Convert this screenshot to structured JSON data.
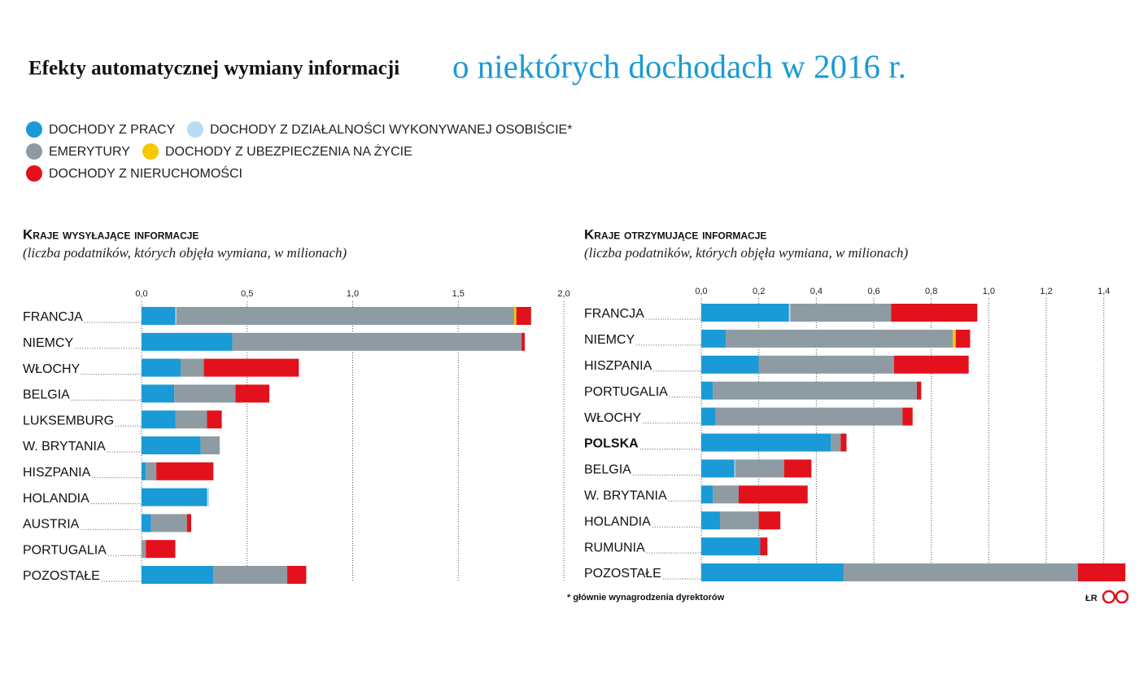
{
  "header": {
    "title": "Efekty automatycznej wymiany informacji",
    "title_highlight": "o niektórych dochodach w 2016 r."
  },
  "chart_data": [
    {
      "type": "bar",
      "orientation": "horizontal",
      "stacked": true,
      "grid": true,
      "title": "Kraje wysyłające informacje",
      "subtitle": "(liczba podatników, których objęła wymiana, w milionach)",
      "categories": [
        "FRANCJA",
        "NIEMCY",
        "WŁOCHY",
        "BELGIA",
        "LUKSEMBURG",
        "W. BRYTANIA",
        "HISZPANIA",
        "HOLANDIA",
        "AUSTRIA",
        "PORTUGALIA",
        "POZOSTAŁE"
      ],
      "series": [
        {
          "name": "DOCHODY Z PRACY",
          "color": "#1a9ad6",
          "values": [
            0.16,
            0.43,
            0.185,
            0.155,
            0.16,
            0.28,
            0.02,
            0.31,
            0.045,
            0,
            0.34
          ]
        },
        {
          "name": "DOCHODY Z DZIAŁALNOŚCI WYKONYWANEJ OSOBIŚCIE*",
          "color": "#b5dcf2",
          "values": [
            0.005,
            0,
            0,
            0,
            0,
            0,
            0,
            0.01,
            0,
            0,
            0
          ]
        },
        {
          "name": "EMERYTURY",
          "color": "#8e9ba3",
          "values": [
            1.6,
            1.37,
            0.11,
            0.29,
            0.15,
            0.09,
            0.05,
            0,
            0.17,
            0.02,
            0.35
          ]
        },
        {
          "name": "DOCHODY Z UBEZPIECZENIA NA ŻYCIE",
          "color": "#f5c800",
          "values": [
            0.01,
            0,
            0,
            0,
            0,
            0,
            0,
            0,
            0,
            0,
            0
          ]
        },
        {
          "name": "DOCHODY Z NIERUCHOMOŚCI",
          "color": "#e3111b",
          "values": [
            0.07,
            0.015,
            0.45,
            0.16,
            0.07,
            0,
            0.27,
            0,
            0.02,
            0.14,
            0.09
          ]
        }
      ],
      "xlim": [
        0,
        2
      ],
      "xticks": [
        {
          "value": 0,
          "label": "0,0"
        },
        {
          "value": 0.5,
          "label": "0,5"
        },
        {
          "value": 1,
          "label": "1,0"
        },
        {
          "value": 1.5,
          "label": "1,5"
        },
        {
          "value": 2,
          "label": "2,0"
        }
      ]
    },
    {
      "type": "bar",
      "orientation": "horizontal",
      "stacked": true,
      "grid": true,
      "title": "Kraje otrzymujące informacje",
      "subtitle": "(liczba podatników, których objęła wymiana, w milionach)",
      "categories": [
        "FRANCJA",
        "NIEMCY",
        "HISZPANIA",
        "PORTUGALIA",
        "WŁOCHY",
        "POLSKA",
        "BELGIA",
        "W. BRYTANIA",
        "HOLANDIA",
        "RUMUNIA",
        "POZOSTAŁE"
      ],
      "bold_category_index": 5,
      "series": [
        {
          "color": "#1a9ad6",
          "values": [
            0.305,
            0.085,
            0.2,
            0.04,
            0.05,
            0.45,
            0.115,
            0.04,
            0.065,
            0.205,
            0.495
          ]
        },
        {
          "color": "#b5dcf2",
          "values": [
            0.005,
            0,
            0,
            0,
            0,
            0,
            0.003,
            0,
            0,
            0,
            0
          ]
        },
        {
          "color": "#8e9ba3",
          "values": [
            0.35,
            0.79,
            0.47,
            0.71,
            0.65,
            0.035,
            0.17,
            0.09,
            0.135,
            0,
            0.815
          ]
        },
        {
          "color": "#f5c800",
          "values": [
            0,
            0.01,
            0,
            0,
            0,
            0,
            0,
            0,
            0,
            0,
            0
          ]
        },
        {
          "color": "#e3111b",
          "values": [
            0.3,
            0.05,
            0.26,
            0.015,
            0.035,
            0.02,
            0.095,
            0.24,
            0.075,
            0.025,
            0.165
          ]
        }
      ],
      "xlim": [
        0,
        1.48
      ],
      "xticks": [
        {
          "value": 0,
          "label": "0,0"
        },
        {
          "value": 0.2,
          "label": "0,2"
        },
        {
          "value": 0.4,
          "label": "0,4"
        },
        {
          "value": 0.6,
          "label": "0,6"
        },
        {
          "value": 0.8,
          "label": "0,8"
        },
        {
          "value": 1,
          "label": "1,0"
        },
        {
          "value": 1.2,
          "label": "1,2"
        },
        {
          "value": 1.4,
          "label": "1,4"
        }
      ]
    }
  ],
  "footnote": "* głównie wynagrodzenia dyrektorów",
  "credit": "ŁR"
}
